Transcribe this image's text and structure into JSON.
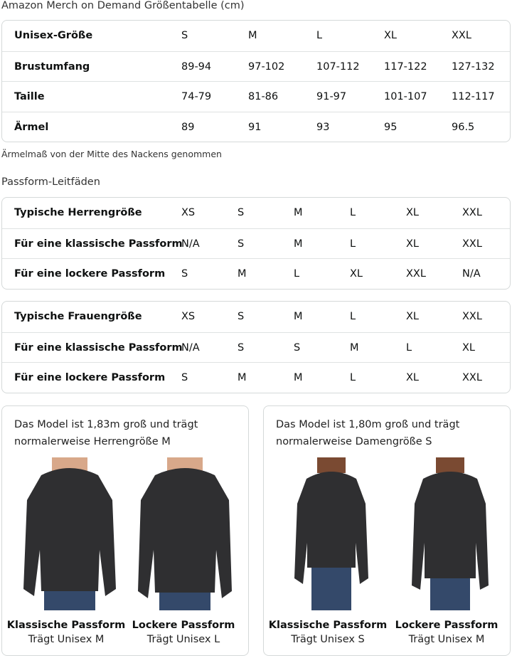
{
  "title": "Amazon Merch on Demand Größentabelle (cm)",
  "size_table": {
    "rows": [
      [
        "Unisex-Größe",
        "S",
        "M",
        "L",
        "XL",
        "XXL"
      ],
      [
        "Brustumfang",
        "89-94",
        "97-102",
        "107-112",
        "117-122",
        "127-132"
      ],
      [
        "Taille",
        "74-79",
        "81-86",
        "91-97",
        "101-107",
        "112-117"
      ],
      [
        "Ärmel",
        "89",
        "91",
        "93",
        "95",
        "96.5"
      ]
    ]
  },
  "note": "Ärmelmaß von der Mitte des Nackens genommen",
  "fit_heading": "Passform-Leitfäden",
  "men_table": {
    "rows": [
      [
        "Typische Herrengröße",
        "XS",
        "S",
        "M",
        "L",
        "XL",
        "XXL"
      ],
      [
        "Für eine klassische Passform",
        "N/A",
        "S",
        "M",
        "L",
        "XL",
        "XXL"
      ],
      [
        "Für eine lockere Passform",
        "S",
        "M",
        "L",
        "XL",
        "XXL",
        "N/A"
      ]
    ]
  },
  "women_table": {
    "rows": [
      [
        "Typische Frauengröße",
        "XS",
        "S",
        "M",
        "L",
        "XL",
        "XXL"
      ],
      [
        "Für eine klassische Passform",
        "N/A",
        "S",
        "S",
        "M",
        "L",
        "XL"
      ],
      [
        "Für eine lockere Passform",
        "S",
        "M",
        "M",
        "L",
        "XL",
        "XXL"
      ]
    ]
  },
  "cards": [
    {
      "caption_1": "Das Model ist 1,83m groß und trägt",
      "caption_2": "normalerweise Herrengröße M",
      "figures": [
        {
          "fit": "Klassische Passform",
          "wears": "Trägt Unisex M"
        },
        {
          "fit": "Lockere Passform",
          "wears": "Trägt Unisex L"
        }
      ]
    },
    {
      "caption_1": "Das Model ist 1,80m groß und trägt",
      "caption_2": "normalerweise Damengröße S",
      "figures": [
        {
          "fit": "Klassische Passform",
          "wears": "Trägt Unisex S"
        },
        {
          "fit": "Lockere Passform",
          "wears": "Trägt Unisex M"
        }
      ]
    }
  ],
  "colors": {
    "border": "#d5d9d9",
    "hoodie": "#2f2f31",
    "jeans": "#34496a"
  }
}
